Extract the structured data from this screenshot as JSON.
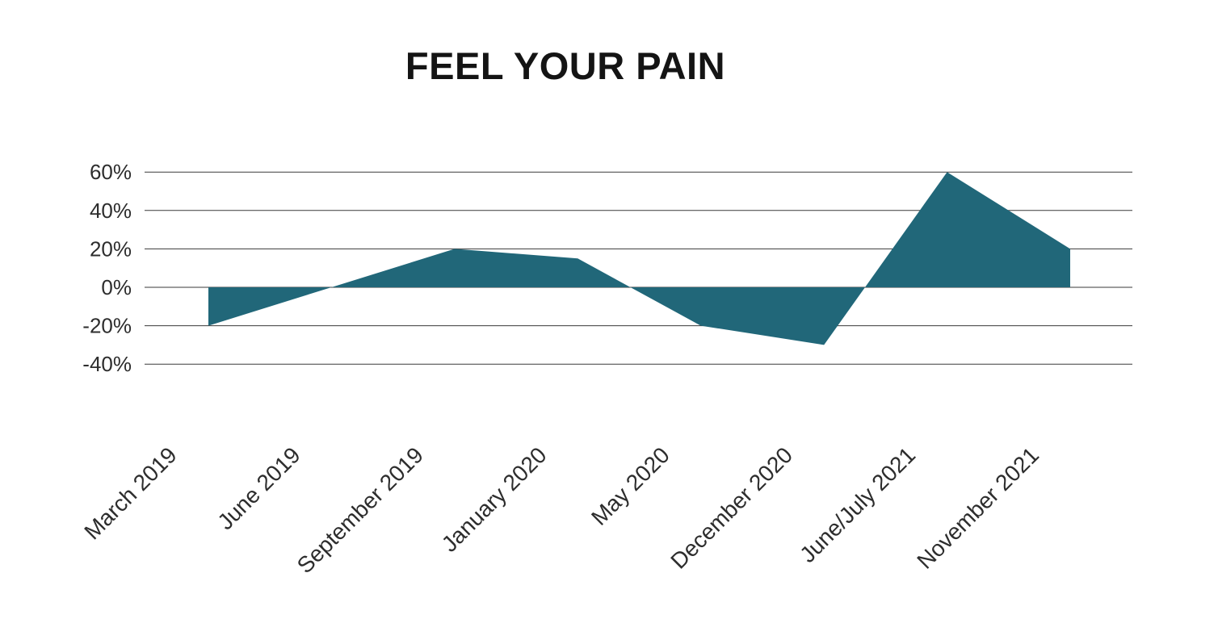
{
  "chart_data": {
    "type": "area",
    "title": "FEEL YOUR PAIN",
    "categories": [
      "March 2019",
      "June 2019",
      "September 2019",
      "January 2020",
      "May 2020",
      "December 2020",
      "June/July 2021",
      "November 2021"
    ],
    "values": [
      -20,
      0,
      20,
      15,
      -20,
      -30,
      60,
      20
    ],
    "unit": "%",
    "xlabel": "",
    "ylabel": "",
    "ylim": [
      -40,
      60
    ],
    "yticks": [
      60,
      40,
      20,
      0,
      -20,
      -40
    ],
    "ytick_labels": [
      "60%",
      "40%",
      "20%",
      "0%",
      "-20%",
      "-40%"
    ],
    "grid": "horizontal",
    "legend": "none",
    "baseline": 0,
    "colors": {
      "area_fill": "#216779",
      "gridline": "#3a3a3a",
      "title_text": "#141414",
      "axis_text": "#2d2d2d",
      "background": "#ffffff"
    }
  }
}
